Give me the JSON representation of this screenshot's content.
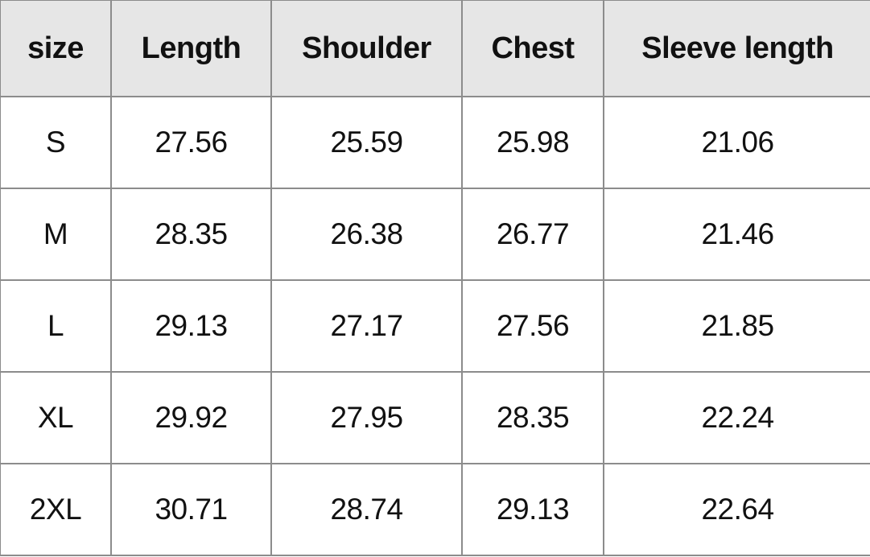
{
  "table": {
    "headers": [
      "size",
      "Length",
      "Shoulder",
      "Chest",
      "Sleeve length"
    ],
    "rows": [
      [
        "S",
        "27.56",
        "25.59",
        "25.98",
        "21.06"
      ],
      [
        "M",
        "28.35",
        "26.38",
        "26.77",
        "21.46"
      ],
      [
        "L",
        "29.13",
        "27.17",
        "27.56",
        "21.85"
      ],
      [
        "XL",
        "29.92",
        "27.95",
        "28.35",
        "22.24"
      ],
      [
        "2XL",
        "30.71",
        "28.74",
        "29.13",
        "22.64"
      ]
    ]
  },
  "colors": {
    "header_bg": "#e6e6e6",
    "border": "#8c8c8c",
    "text": "#111111"
  }
}
